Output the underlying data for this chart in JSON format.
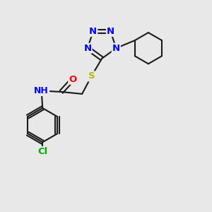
{
  "bg_color": "#e8e8e8",
  "bond_color": "#1a1a1a",
  "bond_width": 1.5,
  "atom_colors": {
    "N": "#0000ff",
    "O": "#ff0000",
    "S": "#b8b800",
    "Cl": "#00aa00",
    "H": "#008080",
    "C": "#1a1a1a"
  },
  "font_size": 9.5
}
